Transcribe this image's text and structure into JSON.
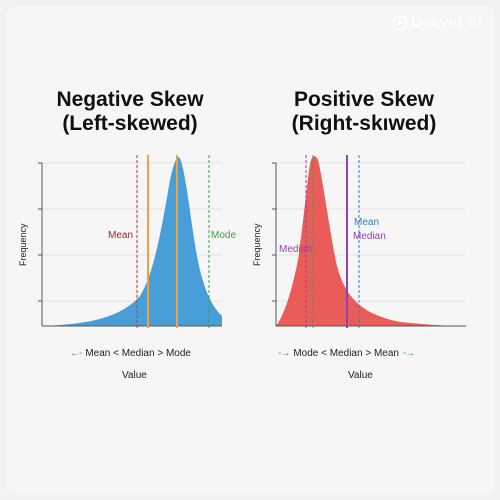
{
  "watermark": {
    "text": "DeeVid AI",
    "icon": "play-logo-icon"
  },
  "panels": {
    "left": {
      "title_line1": "Negative Skew",
      "title_line2": "(Left-skewed)",
      "ylabel": "Frequency",
      "xlabel": "Value",
      "curve_color": "#3e9ad6",
      "labels": {
        "mean": "Mean",
        "mode": "Mode"
      },
      "caption": "Mean < Median > Mode",
      "caption_arrow": "←-",
      "caption_arrow_right": "",
      "line_colors": {
        "mean": "#c0392b",
        "median": "#f0a040",
        "mode": "#3aa046",
        "peak": "#f0a040"
      }
    },
    "right": {
      "title_line1": "Positive Skew",
      "title_line2": "(Right-skıwed)",
      "ylabel": "Frequency",
      "xlabel": "Value",
      "curve_color": "#e8534f",
      "labels": {
        "mean": "Mean",
        "median_top": "Median",
        "median_left": "Median"
      },
      "caption": "Mode < Median > Mean",
      "caption_arrow": "-→",
      "caption_arrow_right": "-→",
      "line_colors": {
        "mean": "#2f7fc0",
        "median": "#8e44ad",
        "mode": "#3aa046"
      }
    }
  }
}
